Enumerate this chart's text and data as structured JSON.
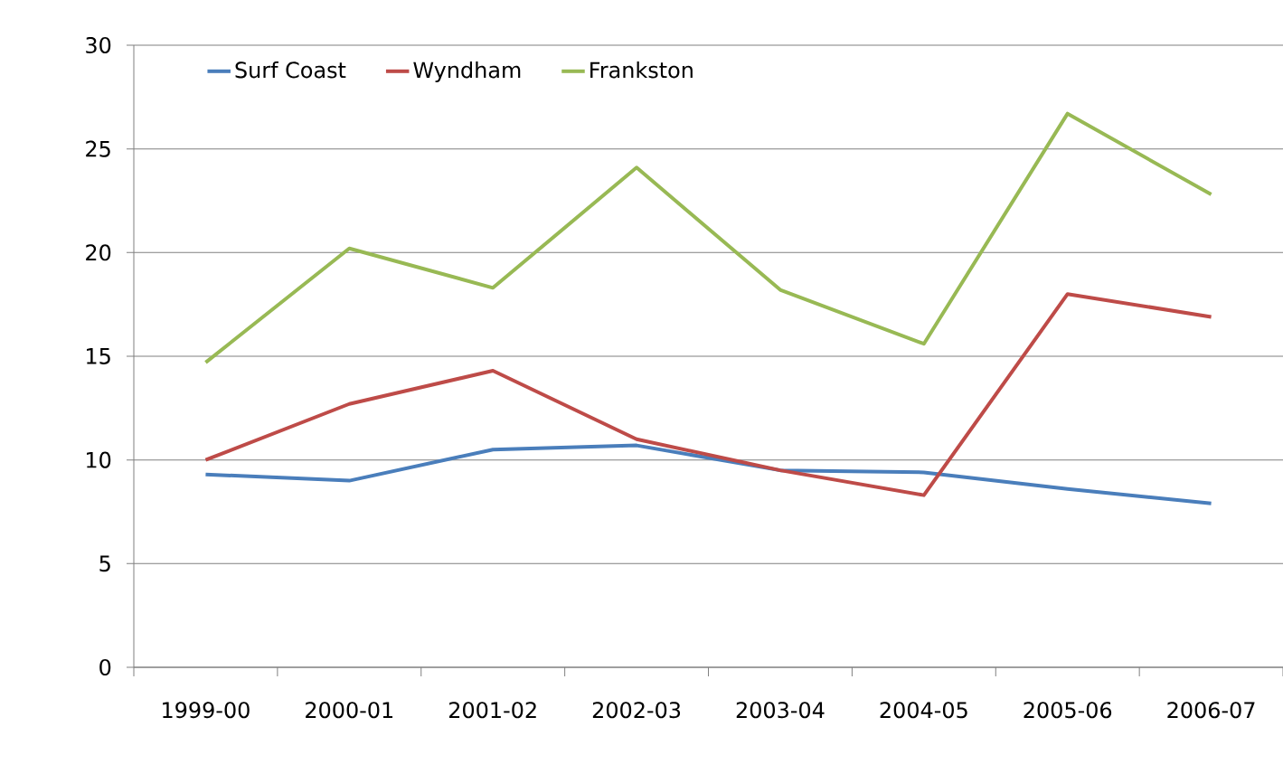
{
  "chart_data": {
    "type": "line",
    "categories": [
      "1999-00",
      "2000-01",
      "2001-02",
      "2002-03",
      "2003-04",
      "2004-05",
      "2005-06",
      "2006-07"
    ],
    "series": [
      {
        "name": "Surf Coast",
        "color": "#4a7ebb",
        "values": [
          9.3,
          9.0,
          10.5,
          10.7,
          9.5,
          9.4,
          8.6,
          7.9
        ]
      },
      {
        "name": "Wyndham",
        "color": "#be4b48",
        "values": [
          10.0,
          12.7,
          14.3,
          11.0,
          9.5,
          8.3,
          18.0,
          16.9
        ]
      },
      {
        "name": "Frankston",
        "color": "#98b954",
        "values": [
          14.7,
          20.2,
          18.3,
          24.1,
          18.2,
          15.6,
          26.7,
          22.8
        ]
      }
    ],
    "ylim": [
      0,
      30
    ],
    "yticks": [
      0,
      5,
      10,
      15,
      20,
      25,
      30
    ],
    "grid": "y",
    "legend": "top left",
    "marker": "none",
    "line_style": "solid"
  }
}
